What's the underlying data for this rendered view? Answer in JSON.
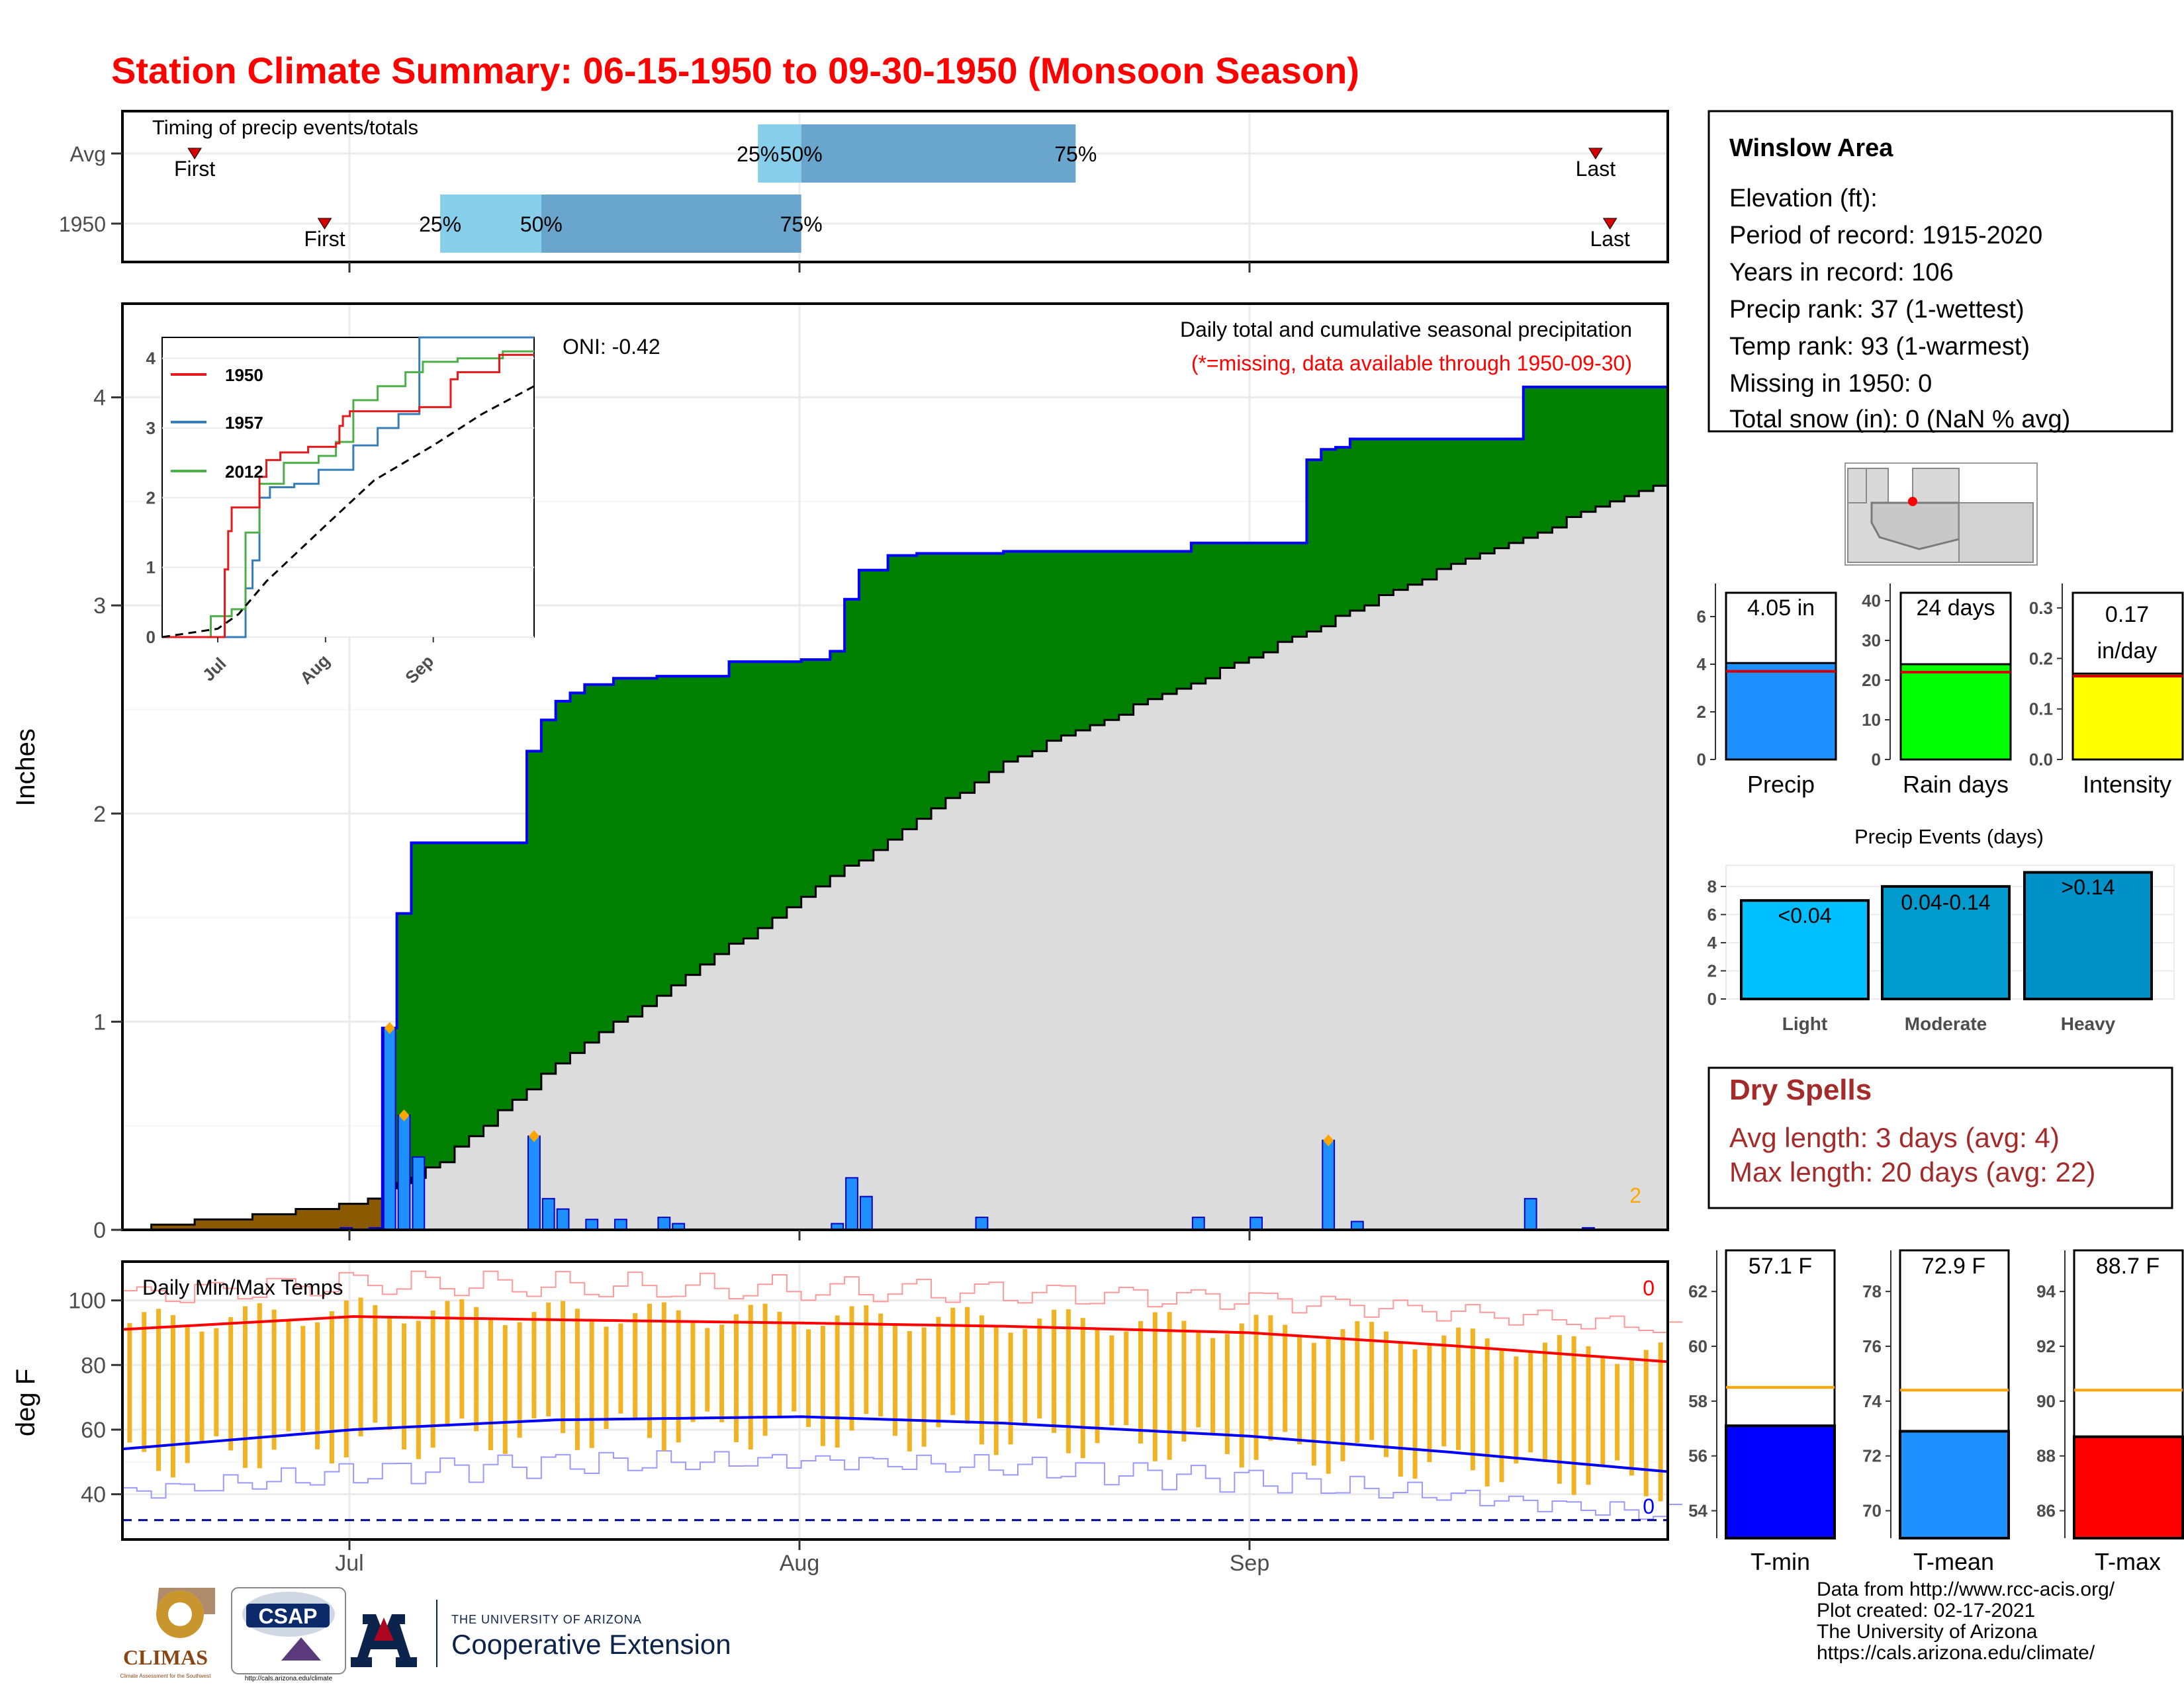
{
  "page": {
    "title": "Station Climate Summary: 06-15-1950 to 09-30-1950 (Monsoon Season)",
    "title_color": "#ff0000"
  },
  "timing": {
    "label": "Timing of precip events/totals",
    "rows": [
      "Avg",
      "1950"
    ],
    "first_label": "First",
    "last_label": "Last",
    "pct_labels": [
      "25%",
      "50%",
      "75%"
    ],
    "avg": {
      "first": "1950-06-20",
      "p25": "1950-07-29",
      "p50": "1950-08-01",
      "p75": "1950-08-20",
      "last": "1950-09-25"
    },
    "y1950": {
      "first": "1950-06-29",
      "p25": "1950-07-07",
      "p50": "1950-07-14",
      "p75": "1950-08-01",
      "last": "1950-09-26"
    },
    "colors": {
      "light": "#87ceeb",
      "dark": "#6aa5cd",
      "marker": "#d40000"
    }
  },
  "summary": {
    "station": "Winslow Area",
    "lines": [
      "Elevation (ft):",
      "Period of record: 1915-2020",
      "Years in record: 106",
      "Precip rank: 37 (1-wettest)",
      "Temp rank: 93 (1-warmest)",
      "Missing in 1950: 0",
      "Total snow (in): 0 (NaN % avg)"
    ]
  },
  "precip_panel": {
    "ylabel": "Inches",
    "oni": "ONI: -0.42",
    "caption": "Daily total and cumulative seasonal precipitation",
    "missing_note": "(*=missing, data available through 1950-09-30)",
    "corner_count": "2",
    "colors": {
      "wet": "#008000",
      "avg": "#dcdcdc",
      "dry": "#8b5a00",
      "line": "#0000ff",
      "bar": "#1e90ff"
    }
  },
  "temp_panel": {
    "ylabel": "deg F",
    "caption": "Daily Min/Max Temps",
    "count_hot": "0",
    "count_cold": "0"
  },
  "x_axis": {
    "labels": [
      "Jul",
      "Aug",
      "Sep"
    ]
  },
  "inset": {
    "legend": [
      "1950",
      "1957",
      "2012"
    ],
    "colors": [
      "#e41a1c",
      "#377eb8",
      "#4daf4a"
    ],
    "xlabels": [
      "Jul",
      "Aug",
      "Sep"
    ]
  },
  "mini_bars": [
    {
      "label": "Precip",
      "value_label": "4.05 in",
      "color": "#1e90ff"
    },
    {
      "label": "Rain days",
      "value_label": "24 days",
      "color": "#00ff00"
    },
    {
      "label": "Intensity",
      "value_label_1": "0.17",
      "value_label_2": "in/day",
      "color": "#ffff00"
    }
  ],
  "events": {
    "title": "Precip Events (days)",
    "labels": [
      "Light",
      "Moderate",
      "Heavy"
    ],
    "value_labels": [
      "<0.04",
      "0.04-0.14",
      ">0.14"
    ],
    "colors": [
      "#00bfff",
      "#009acd",
      "#0091c8"
    ]
  },
  "dry_spells": {
    "title": "Dry Spells",
    "avg_line": "Avg length: 3 days (avg: 4)",
    "max_line": "Max length: 20 days (avg: 22)",
    "color": "#a52a2a"
  },
  "temps_bars": [
    {
      "label": "T-min",
      "value_label": "57.1 F",
      "color": "#0000ff"
    },
    {
      "label": "T-mean",
      "value_label": "72.9 F",
      "color": "#1e90ff"
    },
    {
      "label": "T-max",
      "value_label": "88.7 F",
      "color": "#ff0000"
    }
  ],
  "credits": [
    "Data from http://www.rcc-acis.org/",
    "Plot created: 02-17-2021",
    "The University of Arizona",
    "https://cals.arizona.edu/climate/"
  ],
  "logos": {
    "climas": "CLIMAS",
    "csap": "CSAP",
    "csap_url": "http://cals.arizona.edu/climate",
    "ua_small": "THE UNIVERSITY OF ARIZONA",
    "ua_big": "Cooperative Extension",
    "climas_sub": "Climate Assessment for the Southwest"
  },
  "chart_data": [
    {
      "type": "area",
      "title": "Daily total and cumulative seasonal precipitation",
      "ylabel": "Inches",
      "ylim": [
        0,
        4.45
      ],
      "xlim": [
        "1950-06-15",
        "1950-09-30"
      ],
      "series": [
        {
          "name": "1950",
          "x": [
            "1950-06-15",
            "1950-07-02",
            "1950-07-03",
            "1950-07-04",
            "1950-07-05",
            "1950-07-07",
            "1950-07-13",
            "1950-07-14",
            "1950-07-15",
            "1950-07-16",
            "1950-07-17",
            "1950-07-19",
            "1950-07-22",
            "1950-07-27",
            "1950-07-28",
            "1950-08-01",
            "1950-08-03",
            "1950-08-04",
            "1950-08-05",
            "1950-08-07",
            "1950-08-09",
            "1950-08-15",
            "1950-08-28",
            "1950-09-01",
            "1950-09-05",
            "1950-09-06",
            "1950-09-07",
            "1950-09-08",
            "1950-09-20",
            "1950-09-30"
          ],
          "values": [
            0.0,
            0.0,
            0.97,
            1.52,
            1.86,
            1.86,
            2.3,
            2.45,
            2.54,
            2.58,
            2.62,
            2.65,
            2.66,
            2.73,
            2.73,
            2.74,
            2.78,
            3.03,
            3.17,
            3.24,
            3.25,
            3.26,
            3.3,
            3.3,
            3.7,
            3.75,
            3.76,
            3.8,
            4.05,
            4.05
          ]
        },
        {
          "name": "Average",
          "x": [
            "1950-06-15",
            "1950-07-01",
            "1950-07-07",
            "1950-07-15",
            "1950-08-01",
            "1950-08-15",
            "1950-09-01",
            "1950-09-15",
            "1950-09-30"
          ],
          "values": [
            0.0,
            0.12,
            0.33,
            0.8,
            1.6,
            2.25,
            2.75,
            3.2,
            3.6
          ]
        }
      ],
      "daily_precip": {
        "x": [
          "1950-06-30",
          "1950-07-02",
          "1950-07-03",
          "1950-07-04",
          "1950-07-05",
          "1950-07-13",
          "1950-07-14",
          "1950-07-15",
          "1950-07-17",
          "1950-07-19",
          "1950-07-22",
          "1950-07-23",
          "1950-08-03",
          "1950-08-04",
          "1950-08-05",
          "1950-08-13",
          "1950-08-28",
          "1950-09-01",
          "1950-09-06",
          "1950-09-08",
          "1950-09-20",
          "1950-09-24"
        ],
        "values": [
          0.01,
          0.01,
          0.97,
          0.55,
          0.35,
          0.45,
          0.15,
          0.1,
          0.05,
          0.05,
          0.06,
          0.03,
          0.03,
          0.25,
          0.16,
          0.06,
          0.06,
          0.06,
          0.43,
          0.04,
          0.15,
          0.01
        ]
      }
    },
    {
      "type": "line",
      "title": "Daily Min/Max Temps",
      "ylabel": "deg F",
      "ylim": [
        26,
        112
      ],
      "series": [
        {
          "name": "Avg max",
          "x": [
            "1950-06-15",
            "1950-07-01",
            "1950-07-15",
            "1950-08-01",
            "1950-08-15",
            "1950-09-01",
            "1950-09-15",
            "1950-09-30"
          ],
          "values": [
            91,
            95,
            94,
            93,
            92,
            90,
            86,
            81
          ]
        },
        {
          "name": "Avg min",
          "x": [
            "1950-06-15",
            "1950-07-01",
            "1950-07-15",
            "1950-08-01",
            "1950-08-15",
            "1950-09-01",
            "1950-09-15",
            "1950-09-30"
          ],
          "values": [
            54,
            60,
            63,
            64,
            62,
            58,
            53,
            47
          ]
        }
      ]
    },
    {
      "type": "bar",
      "categories": [
        "Precip",
        "Rain days",
        "Intensity"
      ],
      "values": [
        4.05,
        24,
        0.17
      ],
      "averages": [
        3.7,
        22,
        0.165
      ],
      "ylims": [
        [
          0,
          7
        ],
        [
          0,
          42
        ],
        [
          0,
          0.33
        ]
      ]
    },
    {
      "type": "bar",
      "title": "Precip Events (days)",
      "categories": [
        "Light",
        "Moderate",
        "Heavy"
      ],
      "values": [
        7,
        8,
        9
      ],
      "ylim": [
        0,
        9.5
      ]
    },
    {
      "type": "bar",
      "categories": [
        "T-min",
        "T-mean",
        "T-max"
      ],
      "values": [
        57.1,
        72.9,
        88.7
      ],
      "averages": [
        58.5,
        74.4,
        90.4
      ],
      "ylims": [
        [
          53,
          63.5
        ],
        [
          69,
          79.5
        ],
        [
          85,
          95.5
        ]
      ]
    }
  ]
}
